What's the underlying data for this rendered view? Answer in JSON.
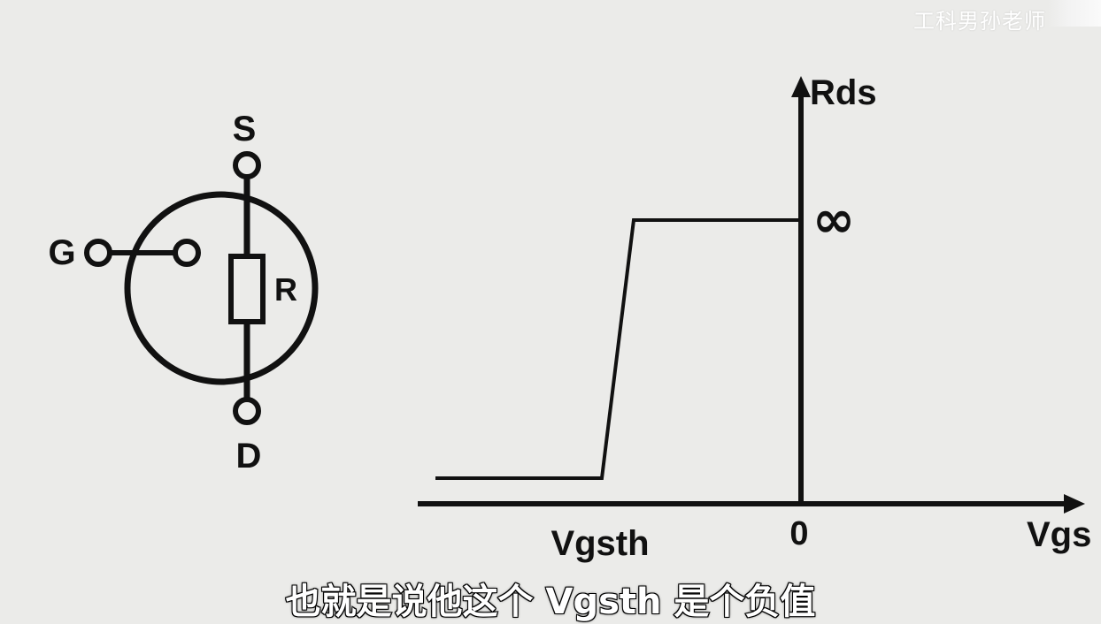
{
  "watermark": "工科男孙老师",
  "subtitle": "也就是说他这个 Vgsth 是个负值",
  "symbol": {
    "source_label": "S",
    "gate_label": "G",
    "drain_label": "D",
    "resistor_label": "R"
  },
  "graph": {
    "y_axis_label": "Rds",
    "x_axis_label": "Vgs",
    "origin_label": "0",
    "threshold_label": "Vgsth",
    "infinity_label": "∞"
  },
  "colors": {
    "ink": "#111111",
    "background": "#ebebe9",
    "subtitle_fill": "#ffffff",
    "watermark": "#ffffff"
  }
}
